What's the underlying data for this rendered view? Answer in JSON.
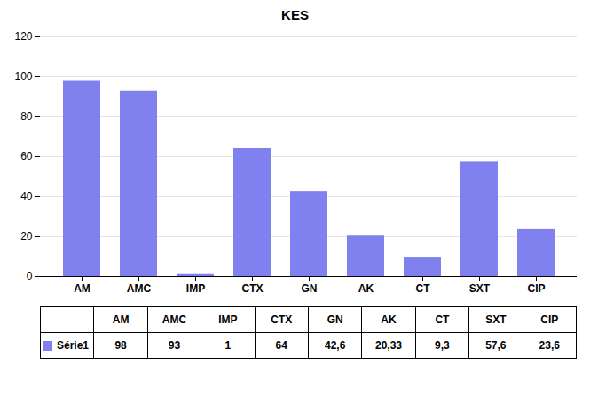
{
  "chart_data": {
    "type": "bar",
    "title": "KES",
    "categories": [
      "AM",
      "AMC",
      "IMP",
      "CTX",
      "GN",
      "AK",
      "CT",
      "SXT",
      "CIP"
    ],
    "series": [
      {
        "name": "Série1",
        "color": "#8080EE",
        "values": [
          98,
          93,
          1,
          64,
          42.6,
          20.33,
          9.3,
          57.6,
          23.6
        ],
        "value_labels": [
          "98",
          "93",
          "1",
          "64",
          "42,6",
          "20,33",
          "9,3",
          "57,6",
          "23,6"
        ]
      }
    ],
    "ylim": [
      0,
      120
    ],
    "yticks": [
      0,
      20,
      40,
      60,
      80,
      100,
      120
    ],
    "grid": true,
    "legend": "bottom"
  }
}
